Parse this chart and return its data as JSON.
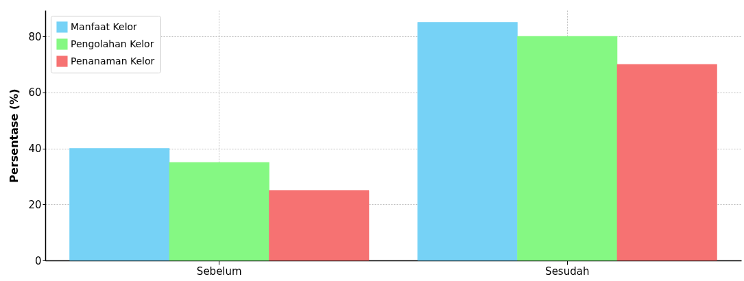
{
  "chart_data": {
    "type": "bar",
    "ylabel": "Persentase (%)",
    "categories": [
      "Sebelum",
      "Sesudah"
    ],
    "series": [
      {
        "name": "Manfaat Kelor",
        "color": "#76d2f6",
        "values": [
          40,
          85
        ]
      },
      {
        "name": "Pengolahan Kelor",
        "color": "#85f883",
        "values": [
          35,
          80
        ]
      },
      {
        "name": "Penanaman Kelor",
        "color": "#f67272",
        "values": [
          25,
          70
        ]
      }
    ],
    "ylim": [
      0,
      89.3
    ],
    "yticks": [
      0,
      20,
      40,
      60,
      80
    ],
    "grid": true,
    "legend": "top left"
  }
}
